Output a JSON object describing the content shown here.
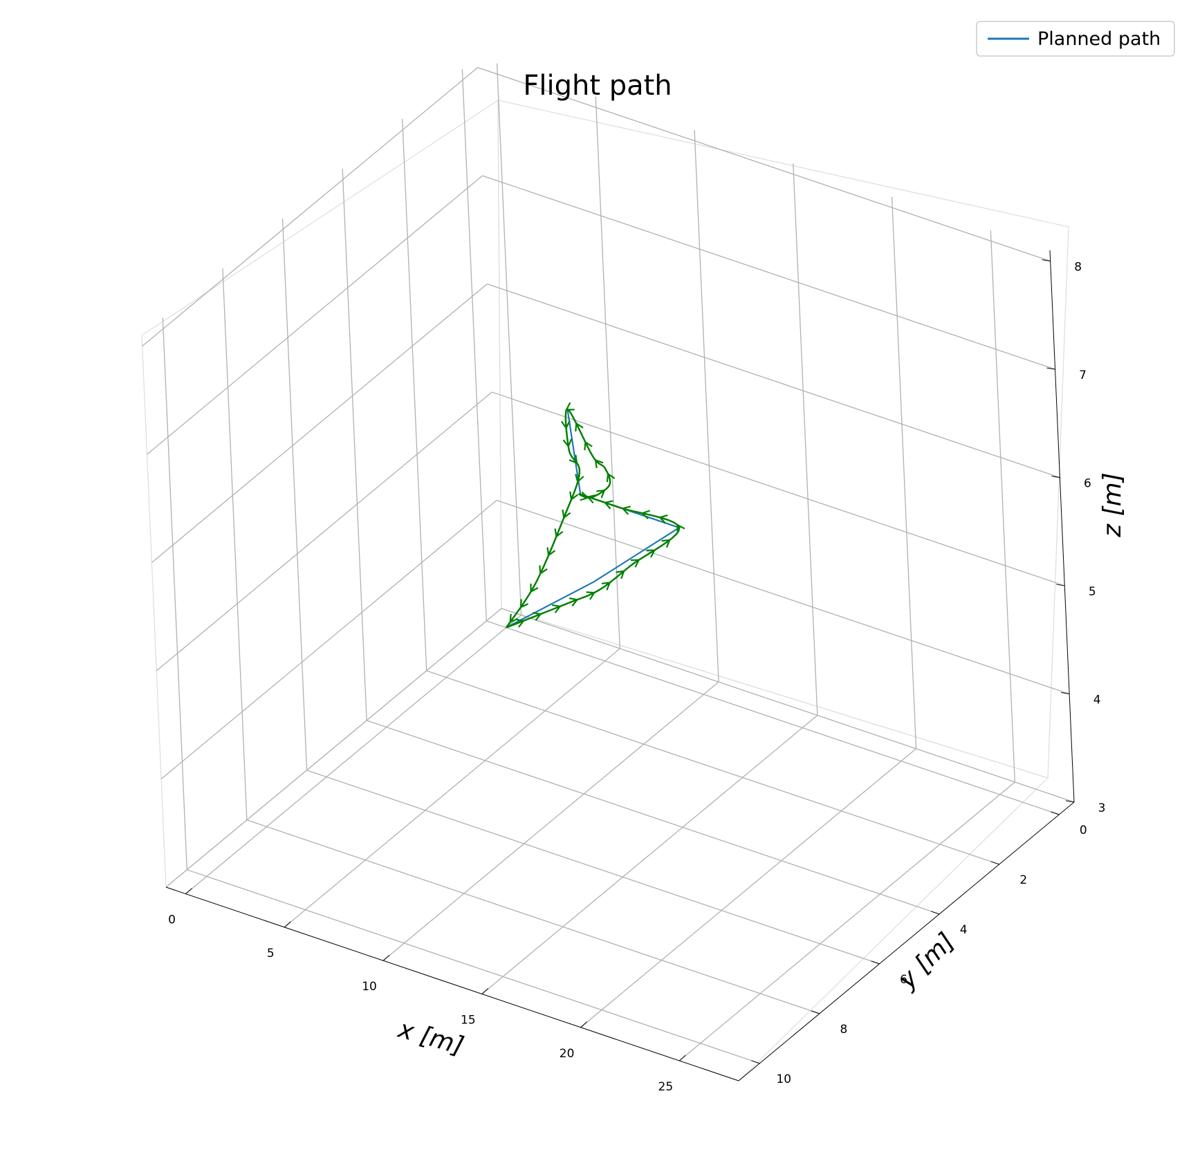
{
  "chart_data": {
    "type": "line",
    "projection": "3d",
    "title": "Flight path",
    "xlabel": "x [m]",
    "ylabel": "y [m]",
    "zlabel": "z [m]",
    "xlim": [
      -1,
      28
    ],
    "ylim": [
      -0.5,
      10.7
    ],
    "zlim": [
      3,
      8.1
    ],
    "x_ticks": [
      "0",
      "5",
      "10",
      "15",
      "20",
      "25"
    ],
    "y_ticks": [
      "0",
      "2",
      "4",
      "6",
      "8",
      "10"
    ],
    "z_ticks": [
      "3",
      "4",
      "5",
      "6",
      "7",
      "8"
    ],
    "grid": true,
    "legend_position": "top-right",
    "series": [
      {
        "name": "Planned path",
        "color": "#1f77b4",
        "points": [
          [
            0,
            0,
            3
          ],
          [
            7,
            1.5,
            4.2
          ],
          [
            15.5,
            4,
            5.8
          ],
          [
            10.5,
            4,
            5.8
          ],
          [
            18,
            9,
            8.2
          ]
        ]
      },
      {
        "color": "#008000",
        "marker": "arrow-quiver",
        "points": [
          [
            0,
            0,
            3
          ],
          [
            5,
            1.2,
            3.8
          ],
          [
            9,
            2.6,
            4.5
          ],
          [
            12,
            3.4,
            5.1
          ],
          [
            15.5,
            4,
            5.8
          ],
          [
            12.5,
            4,
            5.8
          ],
          [
            10.5,
            4,
            5.8
          ],
          [
            12,
            4.6,
            6.0
          ],
          [
            16,
            6.5,
            6.8
          ],
          [
            19,
            8.5,
            7.6
          ],
          [
            20,
            9.5,
            8.0
          ],
          [
            18,
            9,
            8.2
          ],
          [
            14,
            6.5,
            7.0
          ],
          [
            10.5,
            4,
            6.0
          ],
          [
            8,
            3,
            5.2
          ],
          [
            4,
            1.5,
            4.0
          ],
          [
            0,
            0,
            3
          ]
        ]
      }
    ]
  }
}
